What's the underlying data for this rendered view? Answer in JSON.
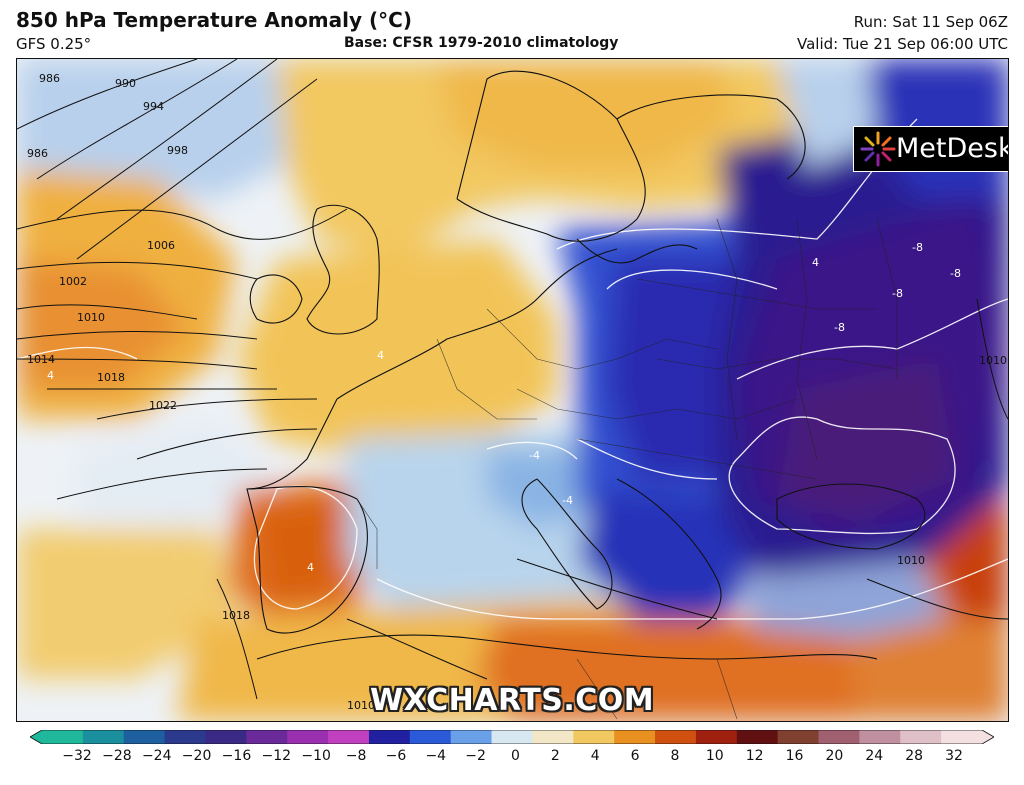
{
  "header": {
    "title": "850 hPa Temperature Anomaly (°C)",
    "model": "GFS 0.25°",
    "base": "Base: CFSR 1979-2010 climatology",
    "run": "Run: Sat 11 Sep 06Z",
    "valid": "Valid: Tue 21 Sep 06:00 UTC"
  },
  "logo": {
    "text": "MetDesk",
    "icon": "metdesk-star-icon"
  },
  "watermark": "WXCHARTS.COM",
  "isobars": {
    "labels": [
      "986",
      "990",
      "994",
      "998",
      "986",
      "1006",
      "1002",
      "1010",
      "1014",
      "1018",
      "1022",
      "1018",
      "1010",
      "1010",
      "1010"
    ]
  },
  "anomaly_labels": [
    "4",
    "4",
    "-8",
    "-8",
    "-8",
    "-8",
    "-4",
    "4",
    "4",
    "-4"
  ],
  "colorbar": {
    "ticks": [
      "−32",
      "−28",
      "−24",
      "−20",
      "−16",
      "−12",
      "−10",
      "−8",
      "−6",
      "−4",
      "−2",
      "0",
      "2",
      "4",
      "6",
      "8",
      "10",
      "12",
      "16",
      "20",
      "24",
      "28",
      "32"
    ],
    "colors": [
      "#1fb89a",
      "#1a8f9e",
      "#1e5fa0",
      "#2b3a8c",
      "#3a2a85",
      "#6b2a9a",
      "#9a30b0",
      "#c040c0",
      "#2020a0",
      "#2b5ad8",
      "#6aa0e8",
      "#d8e8f0",
      "#f2e8c8",
      "#f2c860",
      "#e89020",
      "#d05010",
      "#a02010",
      "#601010",
      "#804030",
      "#a06070",
      "#c090a0",
      "#e0c0c8",
      "#f4e0e0"
    ]
  },
  "palette": {
    "very_cold": "#3a0f7a",
    "cold": "#2840c8",
    "cool": "#8fb4e0",
    "neutral": "#e8eef4",
    "warm": "#f0c050",
    "hot": "#e07020",
    "very_hot": "#c84010"
  }
}
